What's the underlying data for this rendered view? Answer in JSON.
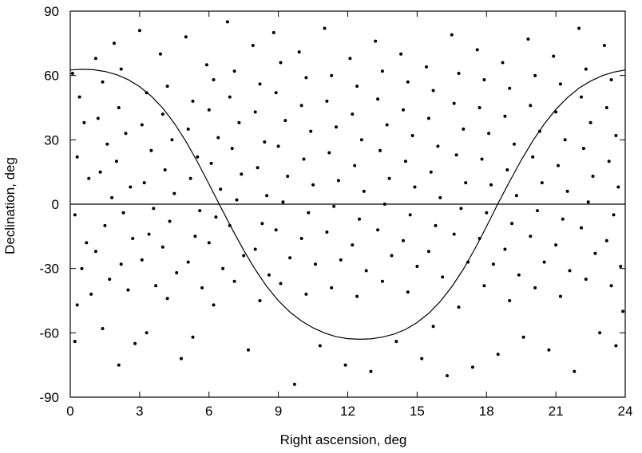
{
  "chart_data": {
    "type": "scatter",
    "title": "",
    "xlabel": "Right ascension, deg",
    "ylabel": "Declination, deg",
    "xlim": [
      0,
      24
    ],
    "ylim": [
      -90,
      90
    ],
    "x_ticks": [
      "0",
      "3",
      "6",
      "9",
      "12",
      "15",
      "18",
      "21",
      "24"
    ],
    "y_ticks": [
      "90",
      "60",
      "30",
      "0",
      "-30",
      "-60",
      "-90"
    ],
    "grid": false,
    "legend": "none",
    "reference_lines": [
      {
        "kind": "horizontal",
        "y": 0
      },
      {
        "kind": "curve",
        "points": [
          [
            0,
            62.6
          ],
          [
            0.5,
            62.9
          ],
          [
            1,
            62.7
          ],
          [
            1.5,
            61.9
          ],
          [
            2,
            60.4
          ],
          [
            2.5,
            58.1
          ],
          [
            3,
            54.8
          ],
          [
            3.5,
            50.4
          ],
          [
            4,
            44.8
          ],
          [
            4.5,
            37.7
          ],
          [
            5,
            29.3
          ],
          [
            5.5,
            19.7
          ],
          [
            6,
            9.3
          ],
          [
            6.5,
            -1.2
          ],
          [
            7,
            -11.6
          ],
          [
            7.5,
            -21.5
          ],
          [
            8,
            -30.5
          ],
          [
            8.5,
            -38.4
          ],
          [
            9,
            -45.0
          ],
          [
            9.5,
            -50.3
          ],
          [
            10,
            -54.5
          ],
          [
            10.5,
            -57.7
          ],
          [
            11,
            -60.1
          ],
          [
            11.5,
            -61.8
          ],
          [
            12,
            -62.7
          ],
          [
            12.5,
            -63.0
          ],
          [
            13,
            -62.8
          ],
          [
            13.5,
            -62.0
          ],
          [
            14,
            -60.6
          ],
          [
            14.5,
            -58.4
          ],
          [
            15,
            -55.2
          ],
          [
            15.5,
            -50.9
          ],
          [
            16,
            -45.4
          ],
          [
            16.5,
            -38.5
          ],
          [
            17,
            -30.3
          ],
          [
            17.5,
            -20.8
          ],
          [
            18,
            -10.4
          ],
          [
            18.5,
            0.3
          ],
          [
            19,
            10.6
          ],
          [
            19.5,
            20.5
          ],
          [
            20,
            29.5
          ],
          [
            20.5,
            37.4
          ],
          [
            21,
            44.2
          ],
          [
            21.5,
            49.7
          ],
          [
            22,
            54.1
          ],
          [
            22.5,
            57.4
          ],
          [
            23,
            59.9
          ],
          [
            23.5,
            61.6
          ],
          [
            24,
            62.6
          ]
        ]
      }
    ],
    "series": [
      {
        "marker": "dot",
        "color": "#000000",
        "points": [
          [
            0.1,
            61
          ],
          [
            0.4,
            50
          ],
          [
            0.6,
            38
          ],
          [
            0.3,
            22
          ],
          [
            0.8,
            12
          ],
          [
            0.2,
            -5
          ],
          [
            0.7,
            -18
          ],
          [
            0.5,
            -30
          ],
          [
            0.9,
            -42
          ],
          [
            0.3,
            -47
          ],
          [
            1.1,
            68
          ],
          [
            1.4,
            57
          ],
          [
            1.2,
            40
          ],
          [
            1.6,
            28
          ],
          [
            1.3,
            15
          ],
          [
            1.8,
            3
          ],
          [
            1.5,
            -10
          ],
          [
            1.1,
            -22
          ],
          [
            1.7,
            -35
          ],
          [
            1.4,
            -58
          ],
          [
            1.9,
            75
          ],
          [
            2.2,
            63
          ],
          [
            2.1,
            45
          ],
          [
            2.4,
            33
          ],
          [
            2.0,
            20
          ],
          [
            2.6,
            8
          ],
          [
            2.3,
            -4
          ],
          [
            2.7,
            -16
          ],
          [
            2.2,
            -28
          ],
          [
            2.5,
            -40
          ],
          [
            2.8,
            -65
          ],
          [
            2.1,
            -75
          ],
          [
            3.0,
            81
          ],
          [
            3.3,
            52
          ],
          [
            3.1,
            37
          ],
          [
            3.5,
            25
          ],
          [
            3.2,
            10
          ],
          [
            3.6,
            -2
          ],
          [
            3.4,
            -14
          ],
          [
            3.1,
            -26
          ],
          [
            3.7,
            -38
          ],
          [
            3.3,
            -60
          ],
          [
            3.9,
            70
          ],
          [
            4.2,
            55
          ],
          [
            4.0,
            42
          ],
          [
            4.4,
            30
          ],
          [
            4.1,
            16
          ],
          [
            4.5,
            5
          ],
          [
            4.3,
            -8
          ],
          [
            4.0,
            -20
          ],
          [
            4.6,
            -32
          ],
          [
            4.2,
            -44
          ],
          [
            4.8,
            -72
          ],
          [
            5.0,
            78
          ],
          [
            5.3,
            48
          ],
          [
            5.1,
            35
          ],
          [
            5.5,
            22
          ],
          [
            5.2,
            12
          ],
          [
            5.6,
            -3
          ],
          [
            5.4,
            -15
          ],
          [
            5.1,
            -27
          ],
          [
            5.7,
            -39
          ],
          [
            5.3,
            -62
          ],
          [
            5.9,
            65
          ],
          [
            6.2,
            58
          ],
          [
            6.0,
            44
          ],
          [
            6.4,
            31
          ],
          [
            6.1,
            19
          ],
          [
            6.5,
            7
          ],
          [
            6.3,
            -6
          ],
          [
            6.0,
            -18
          ],
          [
            6.6,
            -30
          ],
          [
            6.2,
            -47
          ],
          [
            6.8,
            85
          ],
          [
            7.1,
            62
          ],
          [
            6.9,
            50
          ],
          [
            7.3,
            38
          ],
          [
            7.0,
            26
          ],
          [
            7.4,
            14
          ],
          [
            7.2,
            2
          ],
          [
            6.9,
            -10
          ],
          [
            7.5,
            -24
          ],
          [
            7.1,
            -36
          ],
          [
            7.7,
            -68
          ],
          [
            7.9,
            74
          ],
          [
            8.2,
            56
          ],
          [
            8.0,
            43
          ],
          [
            8.4,
            29
          ],
          [
            8.1,
            17
          ],
          [
            8.5,
            4
          ],
          [
            8.3,
            -9
          ],
          [
            8.0,
            -21
          ],
          [
            8.6,
            -33
          ],
          [
            8.2,
            -45
          ],
          [
            8.8,
            80
          ],
          [
            9.1,
            66
          ],
          [
            8.9,
            52
          ],
          [
            9.3,
            39
          ],
          [
            9.0,
            27
          ],
          [
            9.4,
            13
          ],
          [
            9.2,
            1
          ],
          [
            8.9,
            -12
          ],
          [
            9.5,
            -25
          ],
          [
            9.1,
            -37
          ],
          [
            9.7,
            -84
          ],
          [
            9.9,
            71
          ],
          [
            10.2,
            59
          ],
          [
            10.0,
            46
          ],
          [
            10.4,
            34
          ],
          [
            10.1,
            21
          ],
          [
            10.5,
            9
          ],
          [
            10.3,
            -4
          ],
          [
            10.0,
            -16
          ],
          [
            10.6,
            -28
          ],
          [
            10.2,
            -42
          ],
          [
            10.8,
            -66
          ],
          [
            11.0,
            82
          ],
          [
            11.3,
            60
          ],
          [
            11.1,
            48
          ],
          [
            11.5,
            36
          ],
          [
            11.2,
            24
          ],
          [
            11.6,
            11
          ],
          [
            11.4,
            -1
          ],
          [
            11.1,
            -13
          ],
          [
            11.7,
            -26
          ],
          [
            11.3,
            -39
          ],
          [
            11.9,
            -75
          ],
          [
            12.1,
            68
          ],
          [
            12.4,
            55
          ],
          [
            12.2,
            42
          ],
          [
            12.6,
            30
          ],
          [
            12.3,
            18
          ],
          [
            12.7,
            6
          ],
          [
            12.5,
            -7
          ],
          [
            12.2,
            -19
          ],
          [
            12.8,
            -31
          ],
          [
            12.4,
            -43
          ],
          [
            13.0,
            -78
          ],
          [
            13.2,
            76
          ],
          [
            13.5,
            62
          ],
          [
            13.3,
            49
          ],
          [
            13.7,
            37
          ],
          [
            13.4,
            25
          ],
          [
            13.8,
            12
          ],
          [
            13.6,
            0
          ],
          [
            13.3,
            -12
          ],
          [
            13.9,
            -24
          ],
          [
            13.5,
            -36
          ],
          [
            14.1,
            -64
          ],
          [
            14.3,
            70
          ],
          [
            14.6,
            57
          ],
          [
            14.4,
            44
          ],
          [
            14.8,
            32
          ],
          [
            14.5,
            20
          ],
          [
            14.9,
            8
          ],
          [
            14.7,
            -5
          ],
          [
            14.4,
            -17
          ],
          [
            15.0,
            -29
          ],
          [
            14.6,
            -41
          ],
          [
            15.2,
            -72
          ],
          [
            15.4,
            64
          ],
          [
            15.7,
            53
          ],
          [
            15.5,
            40
          ],
          [
            15.9,
            27
          ],
          [
            15.6,
            15
          ],
          [
            16.0,
            3
          ],
          [
            15.8,
            -10
          ],
          [
            15.5,
            -22
          ],
          [
            16.1,
            -34
          ],
          [
            15.7,
            -57
          ],
          [
            16.3,
            -80
          ],
          [
            16.5,
            79
          ],
          [
            16.8,
            61
          ],
          [
            16.6,
            47
          ],
          [
            17.0,
            35
          ],
          [
            16.7,
            23
          ],
          [
            17.1,
            10
          ],
          [
            16.9,
            -2
          ],
          [
            16.6,
            -14
          ],
          [
            17.2,
            -27
          ],
          [
            16.8,
            -48
          ],
          [
            17.4,
            -76
          ],
          [
            17.6,
            72
          ],
          [
            17.9,
            58
          ],
          [
            17.7,
            45
          ],
          [
            18.1,
            33
          ],
          [
            17.8,
            21
          ],
          [
            18.2,
            9
          ],
          [
            18.0,
            -4
          ],
          [
            17.7,
            -16
          ],
          [
            18.3,
            -28
          ],
          [
            17.9,
            -38
          ],
          [
            18.5,
            -70
          ],
          [
            18.7,
            66
          ],
          [
            19.0,
            54
          ],
          [
            18.8,
            41
          ],
          [
            19.2,
            28
          ],
          [
            18.9,
            16
          ],
          [
            19.3,
            4
          ],
          [
            19.1,
            -9
          ],
          [
            18.8,
            -21
          ],
          [
            19.4,
            -33
          ],
          [
            19.0,
            -45
          ],
          [
            19.6,
            -62
          ],
          [
            19.8,
            77
          ],
          [
            20.1,
            60
          ],
          [
            19.9,
            46
          ],
          [
            20.3,
            34
          ],
          [
            20.0,
            22
          ],
          [
            20.4,
            10
          ],
          [
            20.2,
            -3
          ],
          [
            19.9,
            -15
          ],
          [
            20.5,
            -27
          ],
          [
            20.1,
            -39
          ],
          [
            20.7,
            -68
          ],
          [
            20.9,
            69
          ],
          [
            21.2,
            56
          ],
          [
            21.0,
            43
          ],
          [
            21.4,
            30
          ],
          [
            21.1,
            18
          ],
          [
            21.5,
            6
          ],
          [
            21.3,
            -7
          ],
          [
            21.0,
            -19
          ],
          [
            21.6,
            -31
          ],
          [
            21.2,
            -43
          ],
          [
            21.8,
            -78
          ],
          [
            22.0,
            82
          ],
          [
            22.3,
            63
          ],
          [
            22.1,
            50
          ],
          [
            22.5,
            38
          ],
          [
            22.2,
            26
          ],
          [
            22.6,
            13
          ],
          [
            22.4,
            1
          ],
          [
            22.1,
            -11
          ],
          [
            22.7,
            -23
          ],
          [
            22.3,
            -35
          ],
          [
            22.9,
            -60
          ],
          [
            23.1,
            74
          ],
          [
            23.4,
            58
          ],
          [
            23.2,
            45
          ],
          [
            23.6,
            32
          ],
          [
            23.3,
            20
          ],
          [
            23.7,
            8
          ],
          [
            23.5,
            -5
          ],
          [
            23.2,
            -17
          ],
          [
            23.8,
            -29
          ],
          [
            23.4,
            -38
          ],
          [
            23.9,
            -50
          ],
          [
            23.6,
            -66
          ],
          [
            0.2,
            -64
          ]
        ]
      }
    ]
  }
}
